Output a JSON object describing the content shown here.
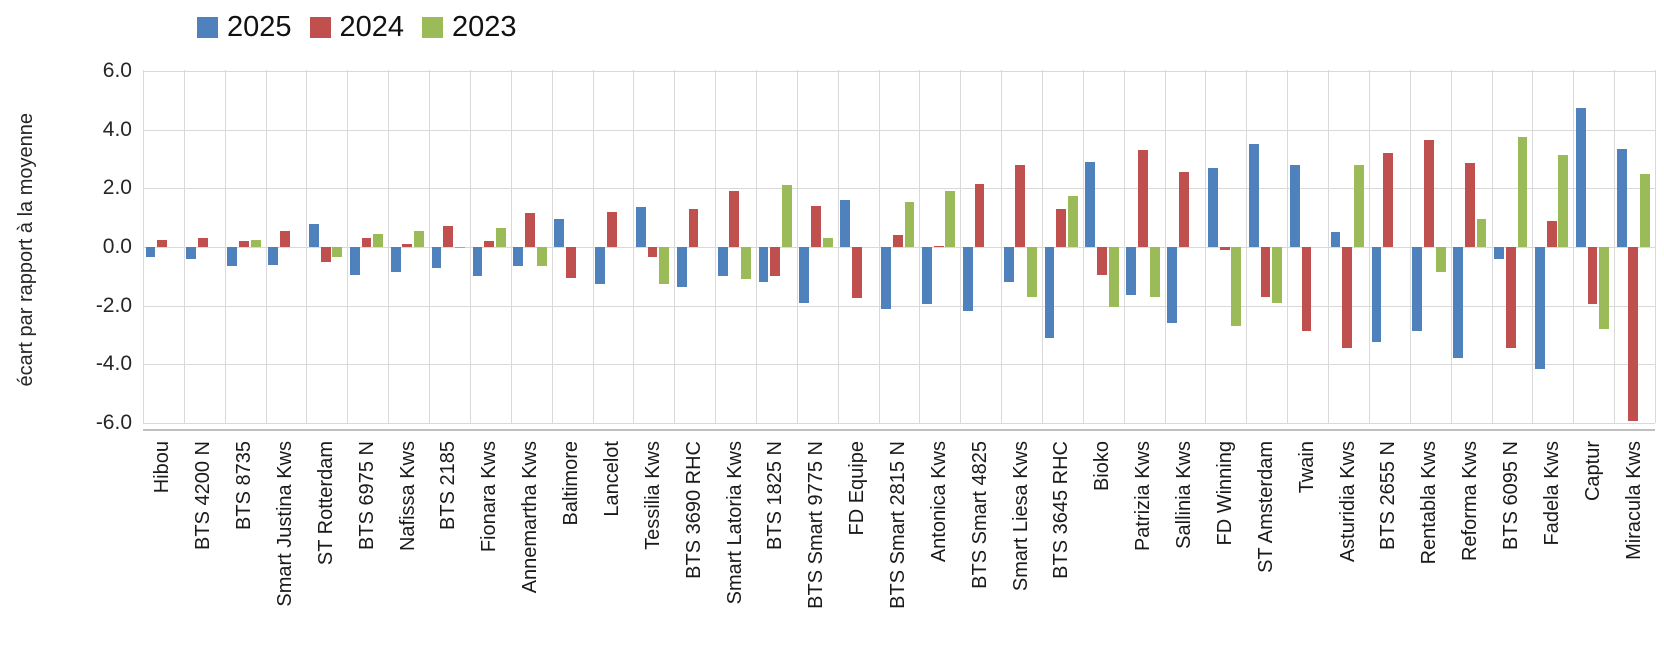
{
  "chart_data": {
    "type": "bar",
    "title": "",
    "xlabel": "",
    "ylabel": "écart par rapport à la moyenne",
    "ylim": [
      -6.2,
      6.0
    ],
    "grid": true,
    "legend_position": "top-left",
    "y_ticks": [
      6.0,
      4.0,
      2.0,
      0.0,
      -2.0,
      -4.0,
      -6.0
    ],
    "y_tick_labels": [
      "6.0",
      "4.0",
      "2.0",
      "0.0",
      "-2.0",
      "-4.0",
      "-6.0"
    ],
    "categories": [
      "Hibou",
      "BTS 4200 N",
      "BTS 8735",
      "Smart Justina Kws",
      "ST Rotterdam",
      "BTS 6975 N",
      "Nafissa Kws",
      "BTS 2185",
      "Fionara Kws",
      "Annemartha Kws",
      "Baltimore",
      "Lancelot",
      "Tessilia Kws",
      "BTS 3690 RHC",
      "Smart Latoria Kws",
      "BTS 1825 N",
      "BTS Smart 9775 N",
      "FD Equipe",
      "BTS Smart 2815 N",
      "Antonica Kws",
      "BTS Smart 4825",
      "Smart Liesa Kws",
      "BTS 3645 RHC",
      "Bioko",
      "Patrizia Kws",
      "Sallinia Kws",
      "FD Winning",
      "ST Amsterdam",
      "Twain",
      "Asturidia Kws",
      "BTS 2655 N",
      "Rentabla Kws",
      "Reforma Kws",
      "BTS 6095 N",
      "Fadela Kws",
      "Captur",
      "Miracula Kws"
    ],
    "series": [
      {
        "name": "2025",
        "color": "#4F81BD",
        "values": [
          -0.35,
          -0.4,
          -0.65,
          -0.6,
          0.8,
          -0.95,
          -0.85,
          -0.7,
          -1.0,
          -0.65,
          0.95,
          -1.25,
          1.35,
          -1.35,
          -1.0,
          -1.2,
          -1.9,
          1.6,
          -2.1,
          -1.95,
          -2.2,
          -1.2,
          -3.1,
          2.9,
          -1.65,
          -2.6,
          2.7,
          3.5,
          2.8,
          0.5,
          -3.25,
          -2.85,
          -3.8,
          -0.4,
          -4.15,
          4.75,
          3.35
        ]
      },
      {
        "name": "2024",
        "color": "#C0504D",
        "values": [
          0.25,
          0.3,
          0.2,
          0.55,
          -0.5,
          0.3,
          0.1,
          0.7,
          0.2,
          1.15,
          -1.05,
          1.2,
          -0.35,
          1.3,
          1.9,
          -1.0,
          1.4,
          -1.75,
          0.4,
          0.05,
          2.15,
          2.8,
          1.3,
          -0.95,
          3.3,
          2.55,
          -0.1,
          -1.7,
          -2.85,
          -3.45,
          3.2,
          3.65,
          2.85,
          -3.45,
          0.9,
          -1.95,
          -5.95
        ]
      },
      {
        "name": "2023",
        "color": "#9BBB59",
        "values": [
          null,
          null,
          0.25,
          null,
          -0.35,
          0.45,
          0.55,
          -0.05,
          0.65,
          -0.65,
          null,
          null,
          -1.25,
          null,
          -1.1,
          2.1,
          0.3,
          null,
          1.55,
          1.9,
          null,
          -1.7,
          1.75,
          -2.05,
          -1.7,
          null,
          -2.7,
          -1.9,
          null,
          2.8,
          null,
          -0.85,
          0.95,
          3.75,
          3.15,
          -2.8,
          2.5
        ]
      }
    ]
  },
  "colors": {
    "gridline": "#d9d9d9",
    "axis_line": "#bfbfbf",
    "background": "#ffffff",
    "text": "#1f1f1f"
  }
}
